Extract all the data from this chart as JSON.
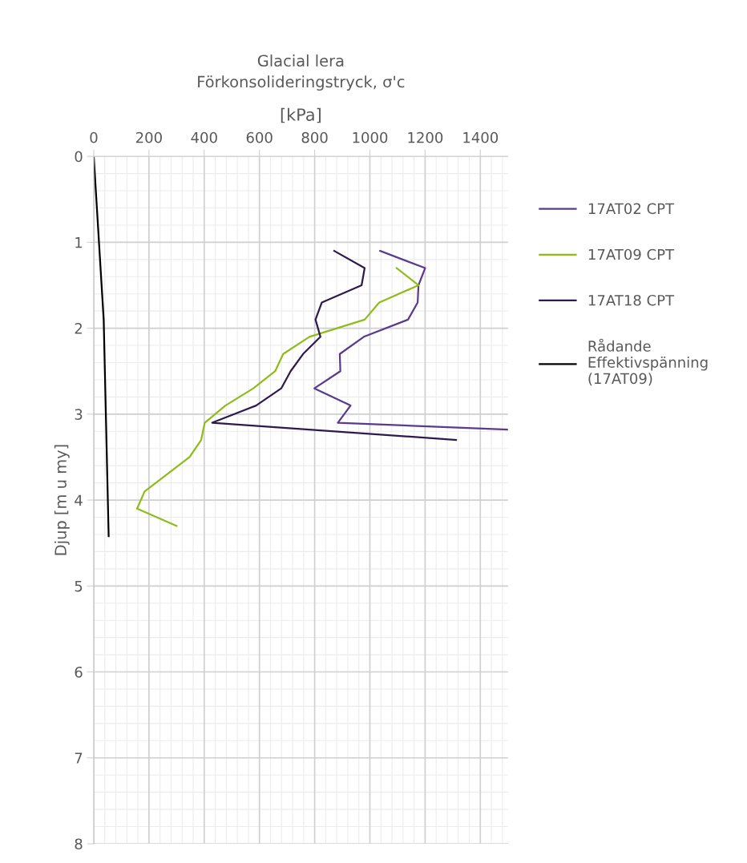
{
  "chart_data": {
    "type": "line",
    "title": "Glacial lera\nFörkonsolideringstryck, σ'c",
    "xlabel": "[kPa]",
    "ylabel": "Djup [m u my]",
    "xlim": [
      0,
      1500
    ],
    "xticks": [
      0,
      200,
      400,
      600,
      800,
      1000,
      1200,
      1400
    ],
    "ylim": [
      8,
      0
    ],
    "yticks": [
      0,
      1,
      2,
      3,
      4,
      5,
      6,
      7,
      8
    ],
    "grid": true,
    "legend": "right",
    "marker": "none",
    "line_style": "solid",
    "series": [
      {
        "name": "17AT02 CPT",
        "color": "#5b3a8e",
        "x": [
          1037,
          1200,
          1176,
          1173,
          1138,
          978,
          891,
          893,
          799,
          930,
          884,
          1500
        ],
        "values": [
          1.1,
          1.3,
          1.5,
          1.7,
          1.9,
          2.1,
          2.3,
          2.5,
          2.7,
          2.9,
          3.1,
          3.18
        ]
      },
      {
        "name": "17AT09 CPT",
        "color": "#8fbc1a",
        "x": [
          1097,
          1176,
          1034,
          981,
          781,
          686,
          657,
          578,
          477,
          402,
          389,
          347,
          184,
          157,
          300
        ],
        "values": [
          1.3,
          1.5,
          1.7,
          1.9,
          2.1,
          2.3,
          2.5,
          2.7,
          2.9,
          3.1,
          3.3,
          3.5,
          3.9,
          4.1,
          4.3
        ]
      },
      {
        "name": "17AT18 CPT",
        "color": "#2d1b4e",
        "x": [
          871,
          981,
          970,
          826,
          803,
          821,
          758,
          713,
          679,
          588,
          429,
          1312
        ],
        "values": [
          1.1,
          1.3,
          1.5,
          1.7,
          1.9,
          2.1,
          2.3,
          2.5,
          2.7,
          2.9,
          3.1,
          3.3
        ]
      },
      {
        "name": "Rådande\nEffektivspänning\n(17AT09)",
        "color": "#000000",
        "x": [
          0,
          36,
          54
        ],
        "values": [
          0,
          1.9,
          4.42
        ]
      }
    ]
  }
}
